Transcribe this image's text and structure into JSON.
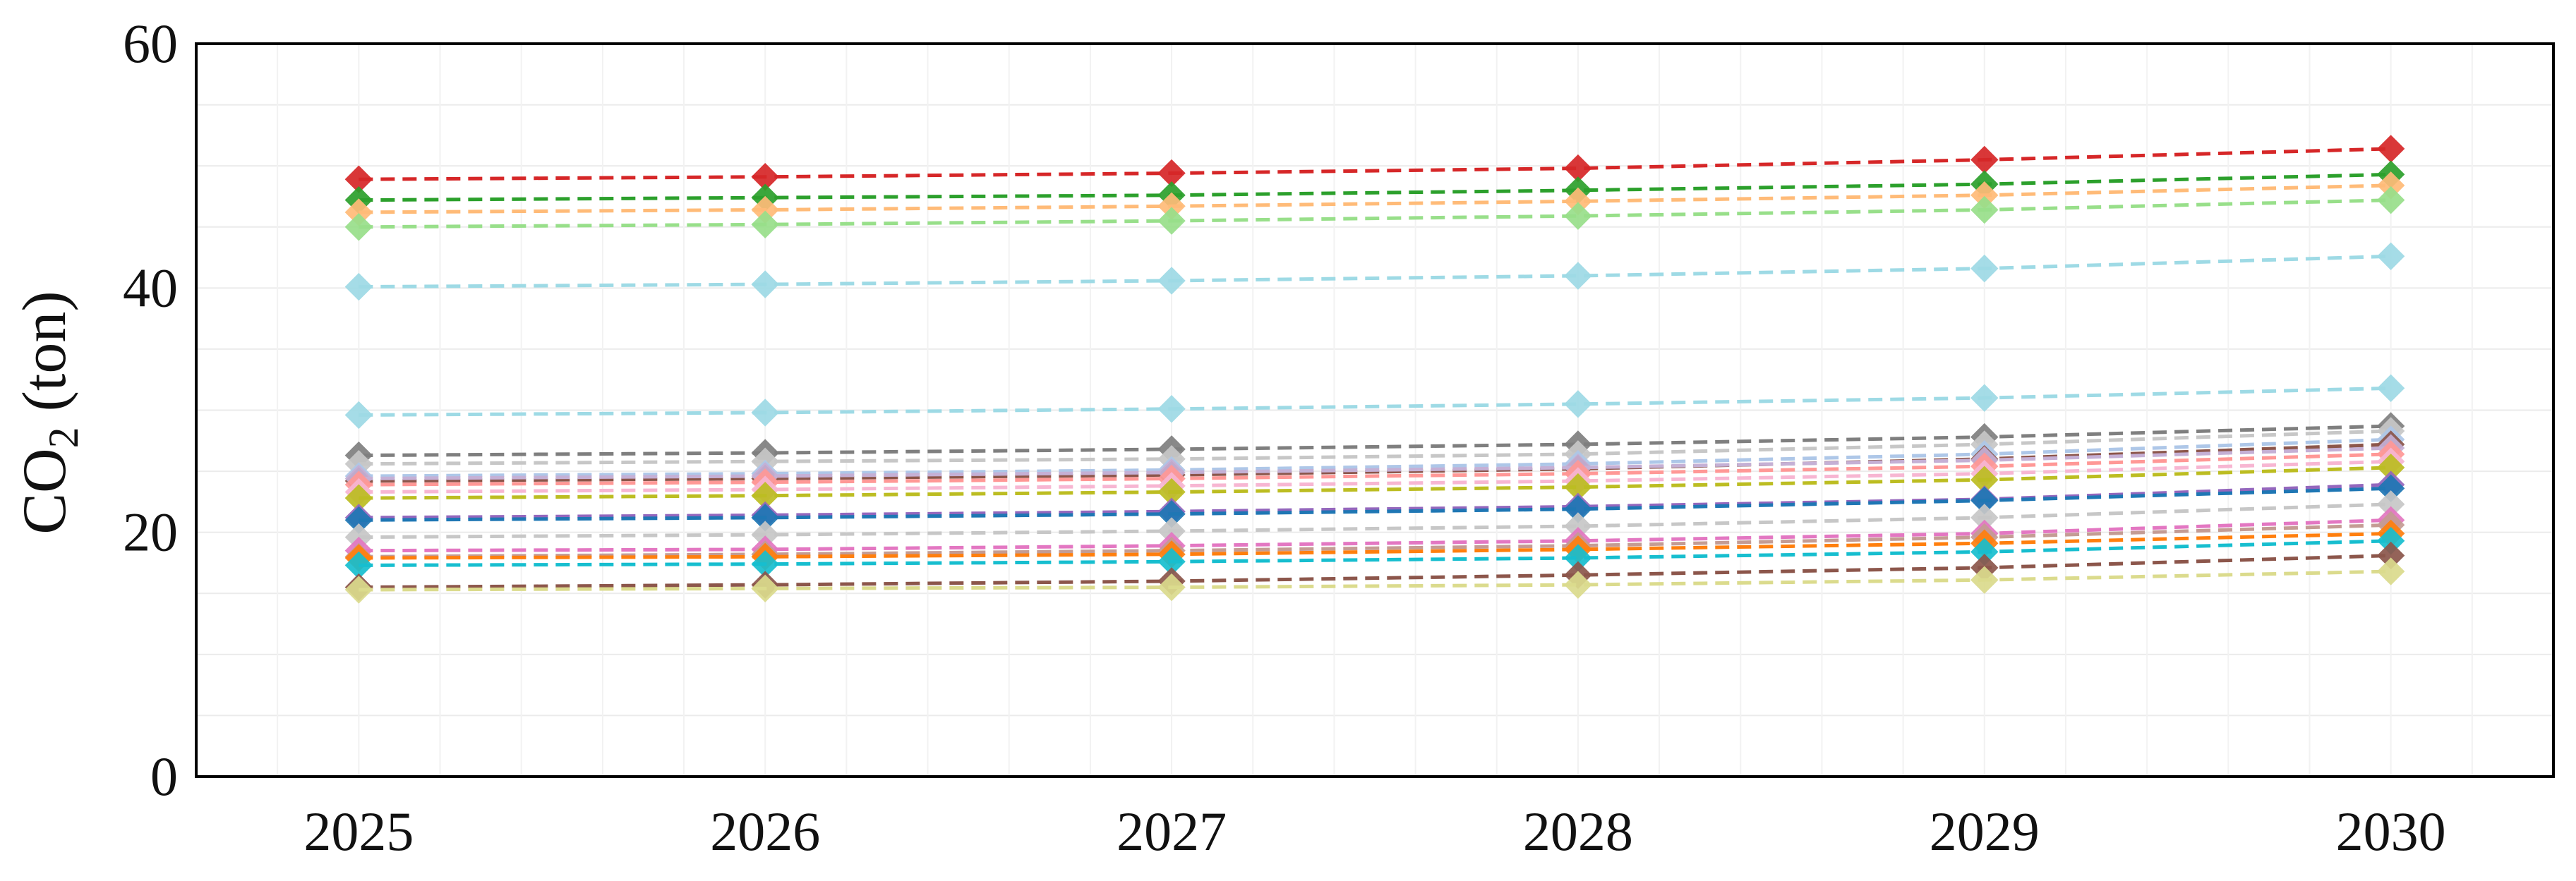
{
  "chart_data": {
    "type": "line",
    "title": "",
    "xlabel": "",
    "ylabel": "CO",
    "ylabel_subscript": "2",
    "ylabel_suffix": " (ton)",
    "x": [
      2025,
      2026,
      2027,
      2028,
      2029,
      2030
    ],
    "xlim": [
      2024.6,
      2030.4
    ],
    "ylim": [
      0,
      60
    ],
    "yticks": [
      0,
      20,
      40,
      60
    ],
    "grid": true,
    "line_style": "dashed",
    "marker": "diamond",
    "series": [
      {
        "color": "#d62728",
        "values": [
          48.9,
          49.1,
          49.4,
          49.8,
          50.5,
          51.4
        ]
      },
      {
        "color": "#2ca02c",
        "values": [
          47.2,
          47.4,
          47.6,
          48.0,
          48.5,
          49.3
        ]
      },
      {
        "color": "#ffbb78",
        "values": [
          46.2,
          46.4,
          46.7,
          47.1,
          47.6,
          48.4
        ]
      },
      {
        "color": "#98df8a",
        "values": [
          45.0,
          45.2,
          45.5,
          45.9,
          46.4,
          47.2
        ]
      },
      {
        "color": "#9edae5",
        "values": [
          40.1,
          40.3,
          40.6,
          41.0,
          41.6,
          42.6
        ]
      },
      {
        "color": "#9edae5",
        "values": [
          29.6,
          29.8,
          30.1,
          30.5,
          31.0,
          31.8
        ]
      },
      {
        "color": "#7f7f7f",
        "values": [
          26.3,
          26.5,
          26.8,
          27.2,
          27.8,
          28.7
        ]
      },
      {
        "color": "#c7c7c7",
        "values": [
          25.6,
          25.8,
          26.0,
          26.4,
          27.2,
          28.3
        ]
      },
      {
        "color": "#aec7e8",
        "values": [
          24.6,
          24.8,
          25.1,
          25.6,
          26.4,
          27.6
        ]
      },
      {
        "color": "#8c564b",
        "values": [
          24.2,
          24.4,
          24.7,
          25.2,
          26.0,
          27.2
        ]
      },
      {
        "color": "#c5b0d5",
        "values": [
          24.4,
          24.6,
          24.9,
          25.3,
          25.9,
          26.9
        ]
      },
      {
        "color": "#ff9896",
        "values": [
          23.9,
          24.1,
          24.4,
          24.8,
          25.4,
          26.4
        ]
      },
      {
        "color": "#f7b6d2",
        "values": [
          23.3,
          23.5,
          23.8,
          24.2,
          24.8,
          25.8
        ]
      },
      {
        "color": "#bcbd22",
        "values": [
          22.8,
          23.0,
          23.3,
          23.7,
          24.3,
          25.3
        ]
      },
      {
        "color": "#9467bd",
        "values": [
          21.2,
          21.4,
          21.7,
          22.1,
          22.7,
          23.9
        ]
      },
      {
        "color": "#1f77b4",
        "values": [
          21.0,
          21.2,
          21.5,
          21.9,
          22.6,
          23.6
        ]
      },
      {
        "color": "#c7c7c7",
        "values": [
          19.6,
          19.8,
          20.1,
          20.5,
          21.2,
          22.3
        ]
      },
      {
        "color": "#e377c2",
        "values": [
          18.5,
          18.6,
          18.9,
          19.3,
          19.9,
          21.0
        ]
      },
      {
        "color": "#c49c94",
        "values": [
          18.0,
          18.2,
          18.5,
          18.9,
          19.6,
          20.6
        ]
      },
      {
        "color": "#ff7f0e",
        "values": [
          17.9,
          18.0,
          18.2,
          18.6,
          19.1,
          19.9
        ]
      },
      {
        "color": "#17becf",
        "values": [
          17.3,
          17.4,
          17.6,
          17.9,
          18.4,
          19.3
        ]
      },
      {
        "color": "#8c564b",
        "values": [
          15.5,
          15.7,
          16.0,
          16.5,
          17.1,
          18.1
        ]
      },
      {
        "color": "#dbdb8d",
        "values": [
          15.3,
          15.4,
          15.5,
          15.7,
          16.1,
          16.8
        ]
      }
    ]
  }
}
